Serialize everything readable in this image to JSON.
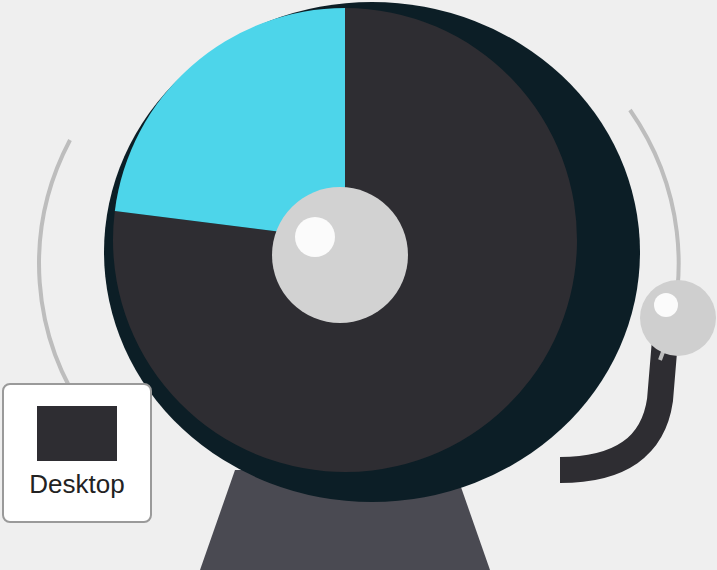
{
  "chart_data": {
    "type": "pie",
    "categories": [
      "Desktop",
      null
    ],
    "values": [
      77,
      23
    ],
    "colors": [
      "#2e2d32",
      "#4dd5ea"
    ],
    "legend": "bottom-left"
  }
}
